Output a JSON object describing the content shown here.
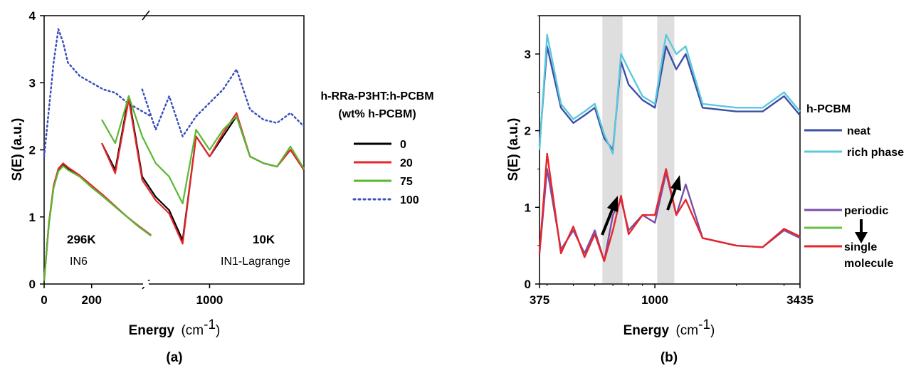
{
  "panels": {
    "a": {
      "label": "(a)",
      "ylabel": "S(E) (a.u.)",
      "xlabel_bold": "Energy",
      "xlabel_unit": "(cm",
      "xlabel_sup": "-1",
      "xlabel_close": ")",
      "yticks": [
        "0",
        "1",
        "2",
        "3",
        "4"
      ],
      "xticks": [
        "0",
        "200",
        "1000"
      ],
      "annotations": {
        "temp_left": "296K",
        "inst_left": "IN6",
        "temp_right": "10K",
        "inst_right": "IN1-Lagrange"
      },
      "legend": {
        "title_line1": "h-RRa-P3HT:h-PCBM",
        "title_line2": "(wt% h-PCBM)",
        "items": [
          {
            "label": "0",
            "color": "#000000",
            "style": "solid"
          },
          {
            "label": "20",
            "color": "#e8262a",
            "style": "solid"
          },
          {
            "label": "75",
            "color": "#5ab830",
            "style": "solid"
          },
          {
            "label": "100",
            "color": "#3b4fbf",
            "style": "dotted"
          }
        ]
      }
    },
    "b": {
      "label": "(b)",
      "ylabel": "S(E) (a.u.)",
      "xlabel_bold": "Energy",
      "xlabel_unit": "(cm",
      "xlabel_sup": "-1",
      "xlabel_close": ")",
      "yticks": [
        "0",
        "1",
        "2",
        "3"
      ],
      "xticks": [
        "375",
        "1000",
        "3435"
      ],
      "legend": {
        "group_title": "h-PCBM",
        "items": [
          {
            "label": "neat",
            "color": "#3b4fa8"
          },
          {
            "label": "rich phase",
            "color": "#5cc8dc"
          },
          {
            "label": "periodic",
            "color": "#7b4fa8"
          },
          {
            "label": "",
            "color": "#6abf45"
          },
          {
            "label": "single\nmolecule",
            "color": "#e8262a"
          }
        ],
        "single_line1": "single",
        "single_line2": "molecule"
      }
    }
  },
  "chart_data": [
    {
      "type": "line",
      "panel": "a",
      "ylabel": "S(E) (a.u.)",
      "ylim": [
        0,
        4
      ],
      "x_axis": "broken: 0-450 (296K, IN6) | 450-1700 (10K, IN1-Lagrange)",
      "series": [
        {
          "name": "0",
          "segment": "IN6 296K",
          "x": [
            0,
            20,
            40,
            60,
            80,
            100,
            150,
            200,
            250,
            300,
            350,
            400,
            450
          ],
          "y": [
            0.05,
            0.9,
            1.45,
            1.7,
            1.78,
            1.72,
            1.6,
            1.45,
            1.3,
            1.15,
            1.0,
            0.85,
            0.72
          ]
        },
        {
          "name": "20",
          "segment": "IN6 296K",
          "x": [
            0,
            20,
            40,
            60,
            80,
            100,
            150,
            200,
            250,
            300,
            350,
            400,
            450
          ],
          "y": [
            0.05,
            0.9,
            1.47,
            1.72,
            1.8,
            1.74,
            1.62,
            1.47,
            1.32,
            1.16,
            1.0,
            0.86,
            0.73
          ]
        },
        {
          "name": "75",
          "segment": "IN6 296K",
          "x": [
            0,
            20,
            40,
            60,
            80,
            100,
            150,
            200,
            250,
            300,
            350,
            400,
            450
          ],
          "y": [
            0.05,
            0.88,
            1.43,
            1.68,
            1.76,
            1.7,
            1.6,
            1.44,
            1.3,
            1.15,
            1.0,
            0.85,
            0.72
          ]
        },
        {
          "name": "100",
          "segment": "IN6 296K",
          "x": [
            0,
            20,
            40,
            60,
            80,
            100,
            150,
            200,
            250,
            300,
            350,
            400,
            450
          ],
          "y": [
            1.9,
            2.6,
            3.3,
            3.8,
            3.6,
            3.3,
            3.1,
            3.0,
            2.9,
            2.85,
            2.7,
            2.6,
            2.5
          ]
        },
        {
          "name": "0",
          "segment": "IN1-Lagrange 10K",
          "x": [
            200,
            300,
            400,
            500,
            600,
            700,
            800,
            900,
            1000,
            1100,
            1200,
            1300,
            1400,
            1500,
            1600,
            1700
          ],
          "y": [
            2.1,
            1.7,
            2.8,
            1.6,
            1.3,
            1.1,
            0.65,
            2.2,
            1.9,
            2.2,
            2.5,
            1.9,
            1.8,
            1.75,
            2.0,
            1.7
          ]
        },
        {
          "name": "20",
          "segment": "IN1-Lagrange 10K",
          "x": [
            200,
            300,
            400,
            500,
            600,
            700,
            800,
            900,
            1000,
            1100,
            1200,
            1300,
            1400,
            1500,
            1600,
            1700
          ],
          "y": [
            2.1,
            1.65,
            2.75,
            1.55,
            1.25,
            1.05,
            0.6,
            2.2,
            1.9,
            2.25,
            2.55,
            1.9,
            1.8,
            1.75,
            2.0,
            1.7
          ]
        },
        {
          "name": "75",
          "segment": "IN1-Lagrange 10K",
          "x": [
            200,
            300,
            400,
            500,
            600,
            700,
            800,
            900,
            1000,
            1100,
            1200,
            1300,
            1400,
            1500,
            1600,
            1700
          ],
          "y": [
            2.45,
            2.1,
            2.8,
            2.2,
            1.8,
            1.6,
            1.2,
            2.3,
            2.0,
            2.3,
            2.5,
            1.9,
            1.8,
            1.75,
            2.05,
            1.72
          ]
        },
        {
          "name": "100",
          "segment": "IN1-Lagrange 10K",
          "x": [
            500,
            600,
            700,
            800,
            900,
            1000,
            1100,
            1200,
            1300,
            1400,
            1500,
            1600,
            1700
          ],
          "y": [
            2.9,
            2.3,
            2.8,
            2.2,
            2.5,
            2.7,
            2.9,
            3.2,
            2.6,
            2.45,
            2.4,
            2.55,
            2.35
          ]
        }
      ]
    },
    {
      "type": "line",
      "panel": "b",
      "ylabel": "S(E) (a.u.)",
      "xlabel": "Energy (cm-1)",
      "ylim": [
        0,
        3.5
      ],
      "x_axis": "logarithmic, 375-3435",
      "shaded_regions": [
        [
          640,
          760
        ],
        [
          1020,
          1180
        ]
      ],
      "series": [
        {
          "name": "neat",
          "x": [
            375,
            400,
            450,
            500,
            550,
            600,
            650,
            700,
            750,
            800,
            900,
            1000,
            1100,
            1200,
            1300,
            1500,
            2000,
            2500,
            3000,
            3435
          ],
          "y": [
            1.8,
            3.1,
            2.3,
            2.1,
            2.2,
            2.3,
            1.9,
            1.75,
            2.9,
            2.6,
            2.4,
            2.3,
            3.1,
            2.8,
            3.0,
            2.3,
            2.25,
            2.25,
            2.45,
            2.2
          ]
        },
        {
          "name": "rich phase",
          "x": [
            375,
            400,
            450,
            500,
            550,
            600,
            650,
            700,
            750,
            800,
            900,
            1000,
            1100,
            1200,
            1300,
            1500,
            2000,
            2500,
            3000,
            3435
          ],
          "y": [
            1.75,
            3.25,
            2.35,
            2.15,
            2.25,
            2.35,
            1.95,
            1.7,
            3.0,
            2.8,
            2.45,
            2.35,
            3.25,
            3.0,
            3.1,
            2.35,
            2.3,
            2.3,
            2.5,
            2.25
          ]
        },
        {
          "name": "periodic",
          "x": [
            375,
            400,
            450,
            500,
            550,
            600,
            650,
            700,
            750,
            800,
            900,
            1000,
            1100,
            1200,
            1300,
            1500,
            2000,
            2500,
            3000,
            3435
          ],
          "y": [
            0.4,
            1.5,
            0.45,
            0.7,
            0.4,
            0.7,
            0.3,
            0.9,
            1.1,
            0.7,
            0.9,
            0.8,
            1.45,
            0.9,
            1.3,
            0.6,
            0.5,
            0.48,
            0.7,
            0.6
          ]
        },
        {
          "name": "single molecule",
          "x": [
            375,
            400,
            450,
            500,
            550,
            600,
            650,
            700,
            750,
            800,
            900,
            1000,
            1100,
            1200,
            1300,
            1500,
            2000,
            2500,
            3000,
            3435
          ],
          "y": [
            0.4,
            1.7,
            0.4,
            0.75,
            0.35,
            0.65,
            0.3,
            0.7,
            1.15,
            0.65,
            0.9,
            0.9,
            1.5,
            0.9,
            1.1,
            0.6,
            0.5,
            0.48,
            0.72,
            0.62
          ]
        }
      ]
    }
  ]
}
